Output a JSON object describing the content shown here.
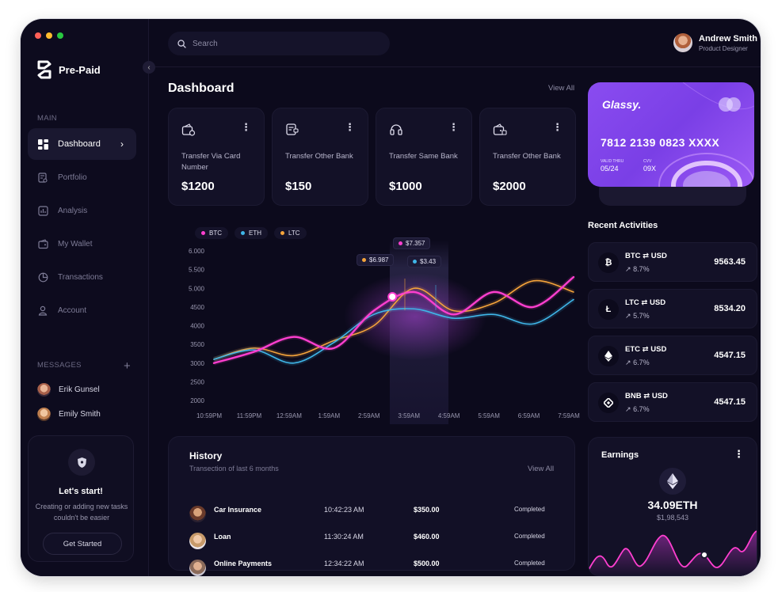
{
  "window": {
    "dots": [
      "#ff5f57",
      "#febc2e",
      "#28c840"
    ]
  },
  "brand": {
    "name": "Pre-Paid"
  },
  "sidebar": {
    "main_label": "MAIN",
    "items": [
      {
        "label": "Dashboard",
        "icon": "dashboard-icon",
        "active": true
      },
      {
        "label": "Portfolio",
        "icon": "portfolio-icon"
      },
      {
        "label": "Analysis",
        "icon": "analysis-icon"
      },
      {
        "label": "My Wallet",
        "icon": "wallet-icon"
      },
      {
        "label": "Transactions",
        "icon": "transactions-icon"
      },
      {
        "label": "Account",
        "icon": "account-icon"
      }
    ],
    "messages_label": "MESSAGES",
    "messages": [
      {
        "name": "Erik Gunsel"
      },
      {
        "name": "Emily Smith"
      }
    ],
    "promo": {
      "title": "Let's start!",
      "description": "Creating or adding new tasks couldn't be easier",
      "button": "Get Started"
    }
  },
  "header": {
    "search_placeholder": "Search",
    "user": {
      "name": "Andrew Smith",
      "role": "Product Designer"
    }
  },
  "dashboard": {
    "title": "Dashboard",
    "view_all": "View All",
    "stats": [
      {
        "label": "Transfer Via Card Number",
        "value": "$1200"
      },
      {
        "label": "Transfer Other Bank",
        "value": "$150"
      },
      {
        "label": "Transfer Same Bank",
        "value": "$1000"
      },
      {
        "label": "Transfer Other Bank",
        "value": "$2000"
      }
    ]
  },
  "chart_data": {
    "type": "line",
    "x": [
      "10:59PM",
      "11:59PM",
      "12:59AM",
      "1:59AM",
      "2:59AM",
      "3:59AM",
      "4:59AM",
      "5:59AM",
      "6:59AM",
      "7:59AM"
    ],
    "y_ticks": [
      "6.000",
      "5.500",
      "5.000",
      "4500",
      "4000",
      "3500",
      "3000",
      "2500",
      "2000"
    ],
    "ylim": [
      2000,
      6000
    ],
    "legend": [
      {
        "name": "BTC",
        "color": "#ff3fd0"
      },
      {
        "name": "ETH",
        "color": "#3fb6e8"
      },
      {
        "name": "LTC",
        "color": "#f5a43b"
      }
    ],
    "series": [
      {
        "name": "BTC",
        "values": [
          3000,
          3300,
          3700,
          3400,
          4400,
          4900,
          4300,
          4900,
          4500,
          5300
        ]
      },
      {
        "name": "ETH",
        "values": [
          3100,
          3350,
          3000,
          3550,
          4300,
          4450,
          4200,
          4300,
          4050,
          4700
        ]
      },
      {
        "name": "LTC",
        "values": [
          3100,
          3400,
          3200,
          3600,
          4000,
          5000,
          4400,
          4600,
          5200,
          4900
        ]
      }
    ],
    "tooltips": [
      {
        "label": "$6.987",
        "color": "#f5a43b"
      },
      {
        "label": "$7.357",
        "color": "#ff3fd0"
      },
      {
        "label": "$3.43",
        "color": "#3fb6e8"
      }
    ]
  },
  "card": {
    "brand": "Glassy.",
    "number": "7812 2139 0823 XXXX",
    "valid_label": "VALID THRU",
    "valid": "05/24",
    "cvv_label": "CVV",
    "cvv": "09X"
  },
  "recent": {
    "title": "Recent Activities",
    "items": [
      {
        "coin": "BTC",
        "quote": "USD",
        "change": "8.7%",
        "value": "9563.45",
        "icon": "bitcoin-icon"
      },
      {
        "coin": "LTC",
        "quote": "USD",
        "change": "5.7%",
        "value": "8534.20",
        "icon": "litecoin-icon"
      },
      {
        "coin": "ETC",
        "quote": "USD",
        "change": "6.7%",
        "value": "4547.15",
        "icon": "ethereum-classic-icon"
      },
      {
        "coin": "BNB",
        "quote": "USD",
        "change": "6.7%",
        "value": "4547.15",
        "icon": "binance-icon"
      }
    ]
  },
  "history": {
    "title": "History",
    "subtitle": "Transection of last 6 months",
    "view_all": "View All",
    "rows": [
      {
        "name": "Car Insurance",
        "time": "10:42:23 AM",
        "amount": "$350.00",
        "status": "Completed"
      },
      {
        "name": "Loan",
        "time": "11:30:24 AM",
        "amount": "$460.00",
        "status": "Completed"
      },
      {
        "name": "Online Payments",
        "time": "12:34:22 AM",
        "amount": "$500.00",
        "status": "Completed"
      }
    ]
  },
  "earnings": {
    "title": "Earnings",
    "value": "34.09ETH",
    "sub": "$1,98,543"
  }
}
